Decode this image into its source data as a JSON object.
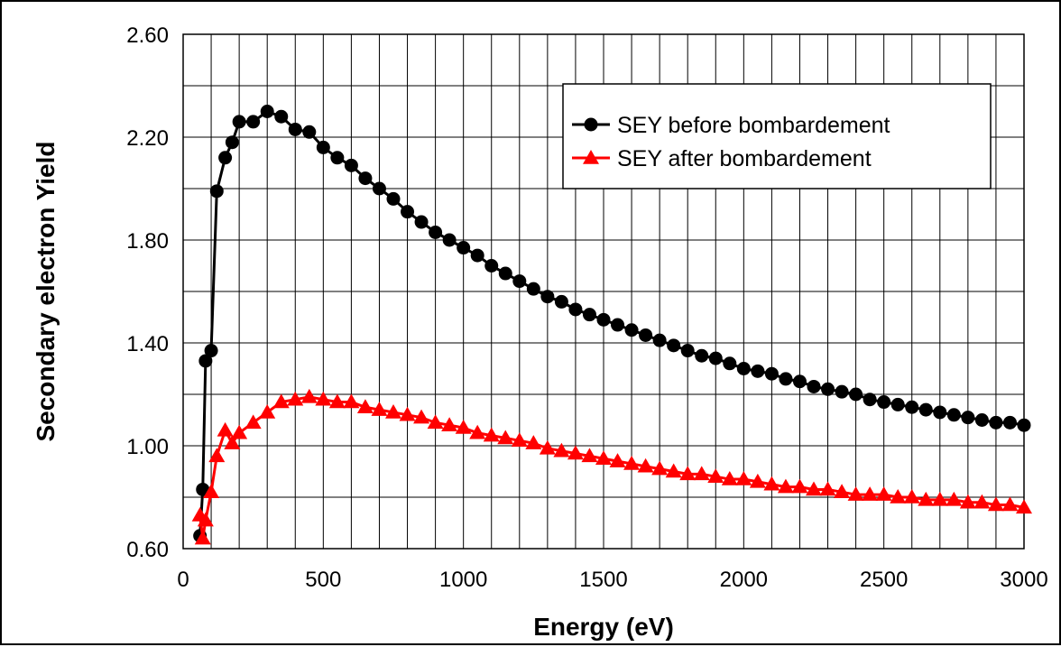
{
  "chart_data": {
    "type": "line",
    "title": "",
    "xlabel": "Energy (eV)",
    "ylabel": "Secondary electron Yield",
    "xlim": [
      0,
      3000
    ],
    "ylim": [
      0.6,
      2.6
    ],
    "x_ticks": [
      0,
      500,
      1000,
      1500,
      2000,
      2500,
      3000
    ],
    "x_tick_labels": [
      "0",
      "500",
      "1000",
      "1500",
      "2000",
      "2500",
      "3000"
    ],
    "x_minor_step": 100,
    "y_ticks": [
      0.6,
      1.0,
      1.4,
      1.8,
      2.2,
      2.6
    ],
    "y_tick_labels": [
      "0.60",
      "1.00",
      "1.40",
      "1.80",
      "2.20",
      "2.60"
    ],
    "y_minor_step": 0.2,
    "grid": true,
    "legend_position": "top-right",
    "series": [
      {
        "name": "SEY before bombardement",
        "color": "#000000",
        "marker": "circle",
        "x": [
          60,
          70,
          80,
          100,
          120,
          150,
          175,
          200,
          250,
          300,
          350,
          400,
          450,
          500,
          550,
          600,
          650,
          700,
          750,
          800,
          850,
          900,
          950,
          1000,
          1050,
          1100,
          1150,
          1200,
          1250,
          1300,
          1350,
          1400,
          1450,
          1500,
          1550,
          1600,
          1650,
          1700,
          1750,
          1800,
          1850,
          1900,
          1950,
          2000,
          2050,
          2100,
          2150,
          2200,
          2250,
          2300,
          2350,
          2400,
          2450,
          2500,
          2550,
          2600,
          2650,
          2700,
          2750,
          2800,
          2850,
          2900,
          2950,
          3000
        ],
        "y": [
          0.65,
          0.83,
          1.33,
          1.37,
          1.99,
          2.12,
          2.18,
          2.26,
          2.26,
          2.3,
          2.28,
          2.23,
          2.22,
          2.16,
          2.12,
          2.09,
          2.04,
          2.0,
          1.96,
          1.91,
          1.87,
          1.83,
          1.8,
          1.77,
          1.74,
          1.7,
          1.67,
          1.64,
          1.61,
          1.58,
          1.56,
          1.53,
          1.51,
          1.49,
          1.47,
          1.45,
          1.43,
          1.41,
          1.39,
          1.37,
          1.35,
          1.34,
          1.32,
          1.3,
          1.29,
          1.28,
          1.26,
          1.25,
          1.23,
          1.22,
          1.21,
          1.2,
          1.18,
          1.17,
          1.16,
          1.15,
          1.14,
          1.13,
          1.12,
          1.11,
          1.1,
          1.09,
          1.09,
          1.08
        ]
      },
      {
        "name": "SEY after bombardement",
        "color": "#ff0000",
        "marker": "triangle",
        "x": [
          60,
          70,
          80,
          100,
          120,
          150,
          175,
          200,
          250,
          300,
          350,
          400,
          450,
          500,
          550,
          600,
          650,
          700,
          750,
          800,
          850,
          900,
          950,
          1000,
          1050,
          1100,
          1150,
          1200,
          1250,
          1300,
          1350,
          1400,
          1450,
          1500,
          1550,
          1600,
          1650,
          1700,
          1750,
          1800,
          1850,
          1900,
          1950,
          2000,
          2050,
          2100,
          2150,
          2200,
          2250,
          2300,
          2350,
          2400,
          2450,
          2500,
          2550,
          2600,
          2650,
          2700,
          2750,
          2800,
          2850,
          2900,
          2950,
          3000
        ],
        "y": [
          0.73,
          0.64,
          0.71,
          0.82,
          0.96,
          1.06,
          1.01,
          1.05,
          1.09,
          1.13,
          1.17,
          1.18,
          1.19,
          1.18,
          1.17,
          1.17,
          1.15,
          1.14,
          1.13,
          1.12,
          1.11,
          1.09,
          1.08,
          1.07,
          1.05,
          1.04,
          1.03,
          1.02,
          1.01,
          0.99,
          0.98,
          0.97,
          0.96,
          0.95,
          0.94,
          0.93,
          0.92,
          0.91,
          0.9,
          0.89,
          0.89,
          0.88,
          0.87,
          0.87,
          0.86,
          0.85,
          0.84,
          0.84,
          0.83,
          0.83,
          0.82,
          0.81,
          0.81,
          0.81,
          0.8,
          0.8,
          0.79,
          0.79,
          0.79,
          0.78,
          0.78,
          0.77,
          0.77,
          0.76
        ]
      }
    ]
  }
}
